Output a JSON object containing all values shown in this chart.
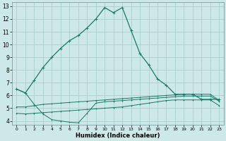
{
  "xlabel": "Humidex (Indice chaleur)",
  "bg_color": "#cce8e8",
  "grid_color": "#aacece",
  "line_color": "#1a7a6a",
  "xlim": [
    -0.5,
    23.5
  ],
  "ylim": [
    3.7,
    13.3
  ],
  "xticks": [
    0,
    1,
    2,
    3,
    4,
    5,
    6,
    7,
    8,
    9,
    10,
    11,
    12,
    13,
    14,
    15,
    16,
    17,
    18,
    19,
    20,
    21,
    22,
    23
  ],
  "yticks": [
    4,
    5,
    6,
    7,
    8,
    9,
    10,
    11,
    12,
    13
  ],
  "line1_x": [
    0,
    1,
    2,
    3,
    4,
    5,
    6,
    7,
    8,
    9,
    10,
    11,
    12,
    13,
    14,
    15,
    16,
    17,
    18,
    19,
    20,
    21,
    22,
    23
  ],
  "line1_y": [
    6.5,
    6.2,
    7.2,
    8.2,
    9.0,
    9.7,
    10.3,
    10.7,
    11.3,
    12.0,
    12.9,
    12.5,
    12.9,
    11.1,
    9.3,
    8.4,
    7.3,
    6.8,
    6.1,
    6.1,
    6.1,
    5.7,
    5.7,
    5.7
  ],
  "line2_x": [
    0,
    1,
    2,
    3,
    4,
    5,
    6,
    7,
    8,
    9,
    10,
    11,
    12,
    13,
    14,
    15,
    16,
    17,
    18,
    19,
    20,
    21,
    22,
    23
  ],
  "line2_y": [
    5.1,
    5.1,
    5.2,
    5.3,
    5.35,
    5.4,
    5.45,
    5.5,
    5.55,
    5.6,
    5.65,
    5.7,
    5.75,
    5.8,
    5.85,
    5.9,
    5.95,
    6.0,
    6.05,
    6.1,
    6.1,
    6.1,
    6.1,
    5.6
  ],
  "line3_x": [
    0,
    1,
    2,
    3,
    4,
    5,
    6,
    7,
    8,
    9,
    10,
    11,
    12,
    13,
    14,
    15,
    16,
    17,
    18,
    19,
    20,
    21,
    22,
    23
  ],
  "line3_y": [
    4.6,
    4.55,
    4.6,
    4.65,
    4.7,
    4.75,
    4.8,
    4.85,
    4.9,
    4.95,
    5.0,
    5.05,
    5.1,
    5.2,
    5.3,
    5.4,
    5.5,
    5.6,
    5.65,
    5.65,
    5.65,
    5.65,
    5.65,
    5.2
  ],
  "line4_x": [
    0,
    1,
    2,
    3,
    4,
    5,
    6,
    7,
    8,
    9,
    10,
    11,
    12,
    13,
    14,
    15,
    16,
    17,
    18,
    19,
    20,
    21,
    22,
    23
  ],
  "line4_y": [
    6.5,
    6.2,
    5.3,
    4.55,
    4.1,
    4.0,
    3.9,
    3.85,
    4.6,
    5.4,
    5.5,
    5.55,
    5.6,
    5.65,
    5.7,
    5.75,
    5.8,
    5.85,
    5.9,
    5.95,
    5.95,
    5.95,
    5.95,
    5.55
  ]
}
